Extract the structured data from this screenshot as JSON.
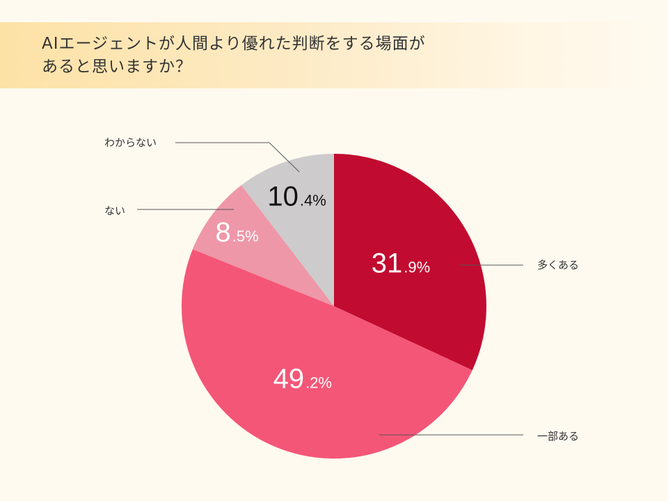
{
  "title": "AIエージェントが人間より優れた判断をする場面が\nあると思いますか？",
  "colors": {
    "background": "#fffaf0",
    "text": "#333333",
    "leader": "#555555"
  },
  "chart_data": {
    "type": "pie",
    "title": "AIエージェントが人間より優れた判断をする場面が\nあると思いますか？",
    "start": "12 o'clock, clockwise",
    "unit": "%",
    "slices": [
      {
        "label": "多くある",
        "value": 31.9,
        "int": "31",
        "dec": ".9%",
        "color": "#c20b30",
        "text_color": "#ffffff"
      },
      {
        "label": "一部ある",
        "value": 49.2,
        "int": "49",
        "dec": ".2%",
        "color": "#f45677",
        "text_color": "#ffffff"
      },
      {
        "label": "ない",
        "value": 8.5,
        "int": "8",
        "dec": ".5%",
        "color": "#ee97a8",
        "text_color": "#ffffff"
      },
      {
        "label": "わからない",
        "value": 10.4,
        "int": "10",
        "dec": ".4%",
        "color": "#cdcbcc",
        "text_color": "#111111"
      }
    ]
  }
}
